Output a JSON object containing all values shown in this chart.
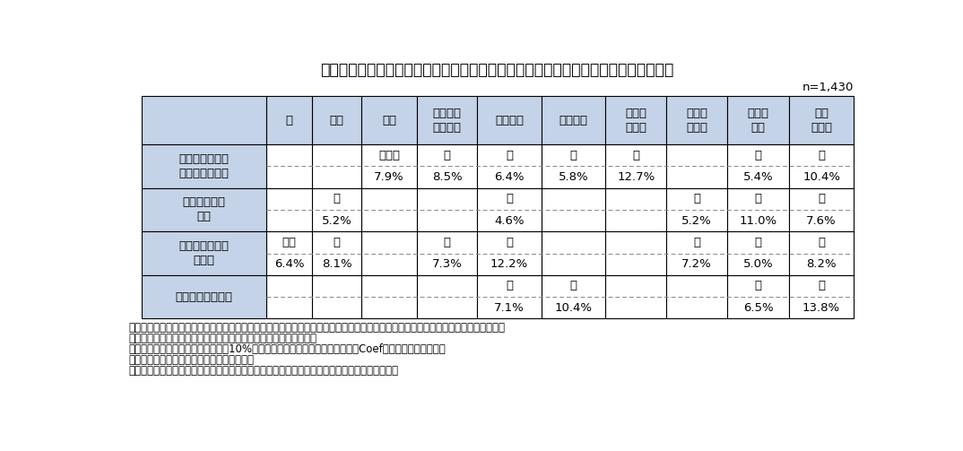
{
  "title": "表７　重視する医薬品の価値（マクロ視点）：価値ごとに見た、属性区分ごとの特徴",
  "n_label": "n=1,430",
  "header_row": [
    "",
    "性",
    "年代",
    "職業",
    "介護が必\n要な家族",
    "最終学歴",
    "世帯年収",
    "医療費\n負担額",
    "医療費\n負担感",
    "受診・\n疾患",
    "自覚\n健康度"
  ],
  "rows": [
    {
      "label": "社会保障制度の\n持続性への寄与",
      "top": [
        "",
        "",
        "無職者",
        "有",
        "高",
        "低",
        "大",
        "",
        "有",
        "高"
      ],
      "bottom": [
        "",
        "",
        "7.9%",
        "8.5%",
        "6.4%",
        "5.8%",
        "12.7%",
        "",
        "5.4%",
        "10.4%"
      ]
    },
    {
      "label": "国民の寿命の\n延伸",
      "top": [
        "",
        "低",
        "",
        "",
        "高",
        "",
        "",
        "大",
        "有",
        "高"
      ],
      "bottom": [
        "",
        "5.2%",
        "",
        "",
        "4.6%",
        "",
        "",
        "5.2%",
        "11.0%",
        "7.6%"
      ]
    },
    {
      "label": "国民の健康寿命\nの延伸",
      "top": [
        "女性",
        "低",
        "",
        "有",
        "高",
        "",
        "",
        "大",
        "有",
        "高"
      ],
      "bottom": [
        "6.4%",
        "8.1%",
        "",
        "7.3%",
        "12.2%",
        "",
        "",
        "7.2%",
        "5.0%",
        "8.2%"
      ]
    },
    {
      "label": "医学・薬学の発展",
      "top": [
        "",
        "",
        "",
        "",
        "低",
        "大",
        "",
        "",
        "有",
        "高"
      ],
      "bottom": [
        "",
        "",
        "",
        "",
        "7.1%",
        "10.4%",
        "",
        "",
        "6.5%",
        "13.8%"
      ]
    }
  ],
  "notes": [
    "注１：価値要素を被説明変数とし、「非常に重要」もしくは「重要」を選択回答した場合に１をとり、そうでない場合に０、属性区分",
    "　　　を説明変数とした線形確率モデルによる多重回帰分析を実施",
    "注２：統計的有意差があったもの（10%水準で有意）を特徴として表内上段、Coef（係数）を下段に記載",
    "注３：欠測値を有する方は解析から除外した",
    "出所：「医薬品の価格や制度、価値に関する意識調査」結果を基に医薬産業政策研究所にて作成"
  ],
  "header_bg": "#c5d3e8",
  "cell_bg": "#ffffff",
  "border_color": "#000000",
  "dashed_color": "#888888",
  "text_color": "#000000",
  "title_fontsize": 12.5,
  "header_fontsize": 9.5,
  "cell_fontsize": 9.5,
  "note_fontsize": 8.5,
  "fig_width": 10.74,
  "fig_height": 5.03,
  "fig_dpi": 100
}
